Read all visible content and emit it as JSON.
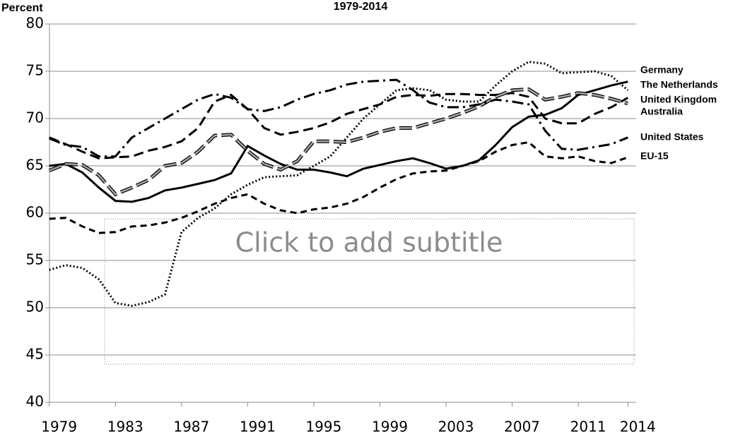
{
  "chart_data": {
    "type": "line",
    "title": "1979-2014",
    "y_label": "Percent",
    "subtitle_placeholder": "Click to add subtitle",
    "x": [
      1979,
      1980,
      1981,
      1982,
      1983,
      1984,
      1985,
      1986,
      1987,
      1988,
      1989,
      1990,
      1991,
      1992,
      1993,
      1994,
      1995,
      1996,
      1997,
      1998,
      1999,
      2000,
      2001,
      2002,
      2003,
      2004,
      2005,
      2006,
      2007,
      2008,
      2009,
      2010,
      2011,
      2012,
      2013,
      2014
    ],
    "xlim": [
      1978.5,
      2014.5
    ],
    "xticks": [
      1979,
      1983,
      1987,
      1991,
      1995,
      1999,
      2003,
      2007,
      2011,
      2014
    ],
    "ylim": [
      40,
      80
    ],
    "yticks": [
      40,
      45,
      50,
      55,
      60,
      65,
      70,
      75,
      80
    ],
    "grid": true,
    "series": [
      {
        "name": "Germany",
        "color": "#000000",
        "style": "solid",
        "values": [
          65,
          65.2,
          64.3,
          62.7,
          61.3,
          61.2,
          61.6,
          62.4,
          62.7,
          63.1,
          63.5,
          64.2,
          67.1,
          66.1,
          65.2,
          64.6,
          64.6,
          64.3,
          63.9,
          64.7,
          65.1,
          65.5,
          65.8,
          65.3,
          64.7,
          65,
          65.6,
          67.2,
          69.1,
          70.2,
          70.4,
          71.1,
          72.5,
          73,
          73.5,
          73.9
        ]
      },
      {
        "name": "The Netherlands",
        "color": "#000000",
        "style": "dotted",
        "values": [
          54,
          54.5,
          54.2,
          53,
          50.5,
          50.2,
          50.6,
          51.4,
          58,
          59.5,
          60.5,
          62,
          63,
          63.8,
          63.9,
          64,
          65,
          66,
          68,
          70,
          71.5,
          73,
          73.2,
          73,
          72,
          71.8,
          71.8,
          73.5,
          75,
          76,
          75.8,
          74.8,
          74.9,
          75,
          74.5,
          73
        ]
      },
      {
        "name": "United Kingdom",
        "color": "#000000",
        "style": "dashed",
        "values": [
          68,
          67.3,
          66.5,
          65.8,
          65.9,
          66,
          66.6,
          67,
          67.6,
          69,
          71.8,
          72.5,
          71,
          69,
          68.3,
          68.6,
          69,
          69.6,
          70.5,
          71,
          71.5,
          72.3,
          72.5,
          72.4,
          72.6,
          72.6,
          72.5,
          72.5,
          72.7,
          72.3,
          70,
          69.5,
          69.5,
          70.5,
          71.2,
          72.2
        ]
      },
      {
        "name": "Australia",
        "color": "#a6a6a6",
        "style": "outlined",
        "values": [
          64.5,
          65.2,
          65.1,
          64,
          62,
          62.7,
          63.5,
          65,
          65.3,
          66.5,
          68.2,
          68.3,
          66.6,
          65.2,
          64.6,
          65.5,
          67.6,
          67.6,
          67.5,
          68,
          68.6,
          69,
          69,
          69.5,
          70,
          70.6,
          71.3,
          72.3,
          73,
          73.1,
          72,
          72.3,
          72.7,
          72.5,
          72.1,
          71.6
        ]
      },
      {
        "name": "United States",
        "color": "#000000",
        "style": "dash-dot",
        "values": [
          67.9,
          67.2,
          67,
          66,
          66,
          68,
          69,
          70,
          71,
          72,
          72.6,
          72.2,
          71,
          70.8,
          71.2,
          72,
          72.6,
          73,
          73.6,
          73.9,
          74,
          74.1,
          73,
          71.7,
          71.2,
          71.2,
          71.5,
          72,
          71.8,
          71.5,
          68.7,
          66.8,
          66.7,
          67,
          67.3,
          68
        ]
      },
      {
        "name": "EU-15",
        "color": "#000000",
        "style": "short-dash",
        "values": [
          59.4,
          59.5,
          58.6,
          57.9,
          58,
          58.6,
          58.7,
          59,
          59.5,
          60.2,
          61,
          61.6,
          62,
          61,
          60.3,
          60,
          60.4,
          60.6,
          61,
          61.7,
          62.7,
          63.6,
          64.2,
          64.4,
          64.5,
          65,
          65.5,
          66.5,
          67.2,
          67.5,
          66,
          65.8,
          66,
          65.5,
          65.3,
          65.9
        ]
      }
    ]
  }
}
